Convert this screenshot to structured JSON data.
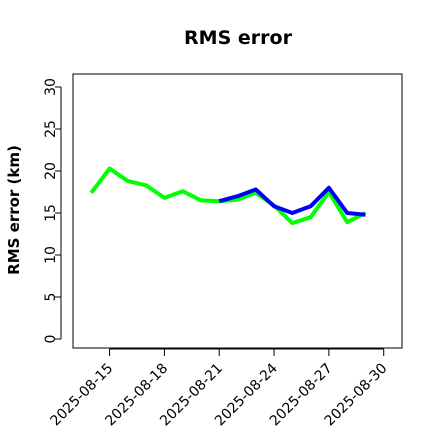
{
  "chart_data": {
    "type": "line",
    "title": "RMS error",
    "xlabel": "",
    "ylabel": "RMS error (km)",
    "ylim": [
      0,
      30
    ],
    "xlim": [
      "2025-08-13",
      "2025-08-31"
    ],
    "y_ticks": [
      0,
      5,
      10,
      15,
      20,
      25,
      30
    ],
    "x_ticks": [
      "2025-08-15",
      "2025-08-18",
      "2025-08-21",
      "2025-08-24",
      "2025-08-27",
      "2025-08-30"
    ],
    "highlighted_tick": "2025-08-21",
    "highlight_color": "#228b22",
    "grid": false,
    "legend": "none",
    "series": [
      {
        "color": "#00ff00",
        "x": [
          "2025-08-14",
          "2025-08-15",
          "2025-08-16",
          "2025-08-17",
          "2025-08-18",
          "2025-08-19",
          "2025-08-20",
          "2025-08-21",
          "2025-08-22",
          "2025-08-23",
          "2025-08-24",
          "2025-08-25",
          "2025-08-26",
          "2025-08-27",
          "2025-08-28",
          "2025-08-29"
        ],
        "values": [
          17.4,
          20.3,
          18.8,
          18.3,
          16.8,
          17.6,
          16.5,
          16.4,
          16.6,
          17.4,
          15.9,
          13.8,
          14.5,
          17.5,
          13.9,
          15.0
        ]
      },
      {
        "color": "#0000ff",
        "x": [
          "2025-08-21",
          "2025-08-22",
          "2025-08-23",
          "2025-08-24",
          "2025-08-25",
          "2025-08-26",
          "2025-08-27",
          "2025-08-28",
          "2025-08-29"
        ],
        "values": [
          16.4,
          17.0,
          17.8,
          15.8,
          15.0,
          15.8,
          18.0,
          15.0,
          14.8
        ]
      }
    ]
  }
}
